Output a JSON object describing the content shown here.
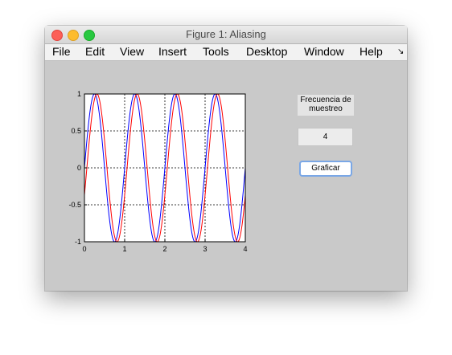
{
  "window": {
    "title": "Figure 1: Aliasing"
  },
  "menubar": {
    "items": [
      "File",
      "Edit",
      "View",
      "Insert",
      "Tools",
      "Desktop",
      "Window",
      "Help"
    ],
    "overflow_icon": "chevron-down-right-icon"
  },
  "controls": {
    "sample_rate_label": "Frecuencia de muestreo",
    "sample_rate_value": "4",
    "plot_button_label": "Graficar"
  },
  "chart_data": {
    "type": "line",
    "xlim": [
      0,
      4
    ],
    "ylim": [
      -1,
      1
    ],
    "xticks": [
      "0",
      "1",
      "2",
      "3",
      "4"
    ],
    "yticks": [
      "1",
      "0.5",
      "0",
      "-0.5",
      "-1"
    ],
    "grid": true,
    "title": "",
    "xlabel": "",
    "ylabel": "",
    "series": [
      {
        "color": "#0000ff",
        "function": "sin(2*pi*t)",
        "t": [
          0,
          4
        ]
      },
      {
        "color": "#ff0000",
        "function": "sin(2*pi*t)",
        "t": [
          0,
          4
        ]
      }
    ]
  }
}
